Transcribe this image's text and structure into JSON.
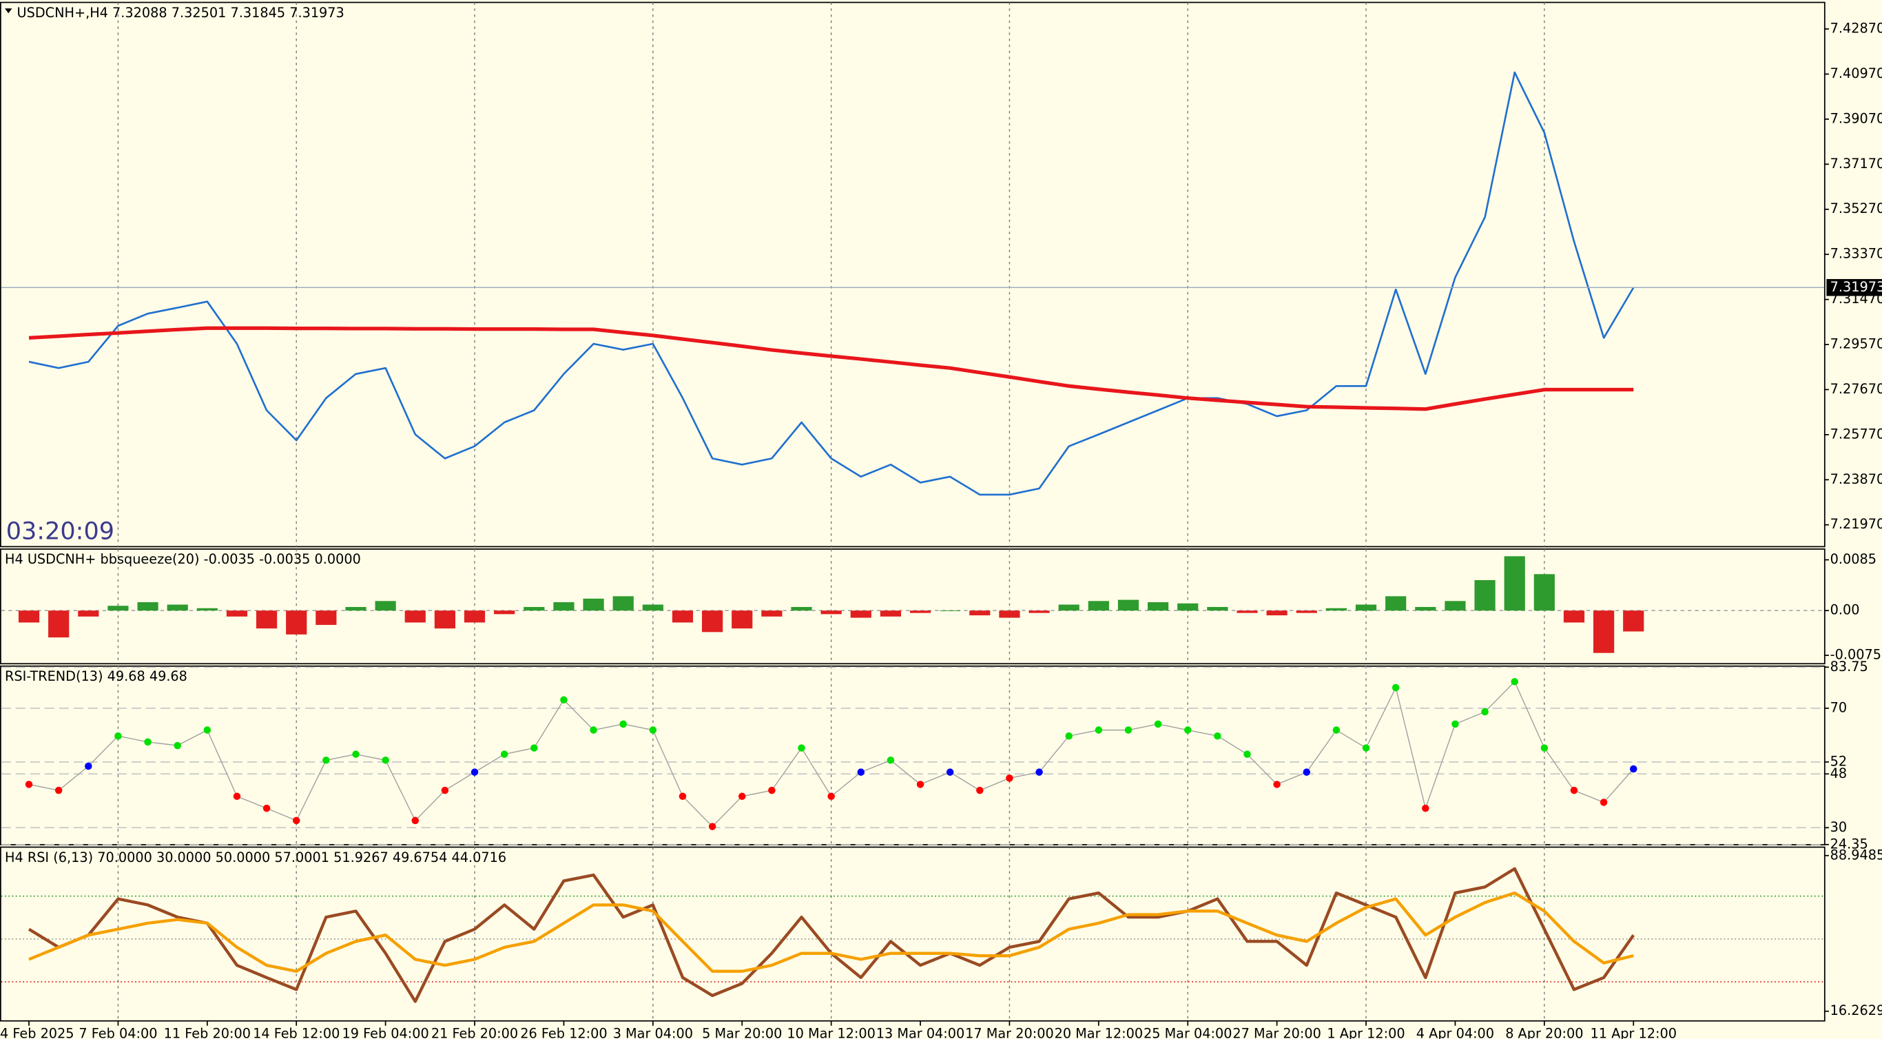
{
  "clock": "03:20:09",
  "chart_data": [
    {
      "type": "line",
      "title": "USDCNH+,H4  7.32088 7.32501 7.31845 7.31973",
      "ylim": [
        7.2105,
        7.4399
      ],
      "yticks": [
        {
          "value": 7.4287,
          "label": "7.42870"
        },
        {
          "value": 7.4097,
          "label": "7.40970"
        },
        {
          "value": 7.3907,
          "label": "7.39070"
        },
        {
          "value": 7.3717,
          "label": "7.37170"
        },
        {
          "value": 7.3527,
          "label": "7.35270"
        },
        {
          "value": 7.3337,
          "label": "7.33370"
        },
        {
          "value": 7.3147,
          "label": "7.31470"
        },
        {
          "value": 7.2957,
          "label": "7.29570"
        },
        {
          "value": 7.2767,
          "label": "7.27670"
        },
        {
          "value": 7.2577,
          "label": "7.25770"
        },
        {
          "value": 7.2387,
          "label": "7.23870"
        },
        {
          "value": 7.2197,
          "label": "7.21970"
        }
      ],
      "current_price": 7.31973,
      "grid": true,
      "series": [
        {
          "color": "#1f6fd0",
          "line_width": 1.5,
          "values": [
            7.2884,
            7.2858,
            7.2884,
            7.3036,
            7.3087,
            7.3112,
            7.3138,
            7.296,
            7.268,
            7.2553,
            7.2731,
            7.2833,
            7.2858,
            7.2578,
            7.2477,
            7.2528,
            7.2629,
            7.268,
            7.2833,
            7.296,
            7.2935,
            7.296,
            7.2731,
            7.2477,
            7.2451,
            7.2477,
            7.2629,
            7.2477,
            7.24,
            7.2451,
            7.2375,
            7.24,
            7.2324,
            7.2324,
            7.235,
            7.2528,
            7.2578,
            7.2629,
            7.268,
            7.2731,
            7.2731,
            7.2706,
            7.2655,
            7.268,
            7.2782,
            7.2782,
            7.3189,
            7.2833,
            7.324,
            7.3494,
            7.4104,
            7.385,
            7.3392,
            7.2985,
            7.3197
          ]
        },
        {
          "color": "#e8161b",
          "line_width": 3,
          "values": [
            7.2985,
            7.2992,
            7.2999,
            7.3006,
            7.3013,
            7.302,
            7.3026,
            7.3026,
            7.3026,
            7.3025,
            7.3025,
            7.3024,
            7.3024,
            7.3023,
            7.3023,
            7.3022,
            7.3022,
            7.3022,
            7.3021,
            7.3021,
            7.3008,
            7.2995,
            7.298,
            7.2965,
            7.295,
            7.2934,
            7.2921,
            7.2908,
            7.2896,
            7.2883,
            7.287,
            7.2858,
            7.2839,
            7.282,
            7.2801,
            7.2782,
            7.2769,
            7.2756,
            7.2744,
            7.2731,
            7.2722,
            7.2713,
            7.2704,
            7.2695,
            7.2693,
            7.269,
            7.2688,
            7.2685,
            7.2706,
            7.2727,
            7.2747,
            7.2767,
            7.2767,
            7.2767,
            7.2767
          ]
        }
      ]
    },
    {
      "type": "bar",
      "title": "H4 USDCNH+ bbsqueeze(20) -0.0035 -0.0035 0.0000",
      "ylim": [
        -0.0089,
        0.0103
      ],
      "yticks": [
        0.0085,
        {
          "value": 0,
          "label": "0.00"
        },
        -0.0075
      ],
      "up_color": "#2e9b2e",
      "down_color": "#e02020",
      "values": [
        -0.002,
        -0.0045,
        -0.001,
        0.0008,
        0.0014,
        0.001,
        0.0004,
        -0.001,
        -0.003,
        -0.004,
        -0.0024,
        0.0006,
        0.0016,
        -0.002,
        -0.003,
        -0.002,
        -0.0006,
        0.0006,
        0.0014,
        0.002,
        0.0024,
        0.001,
        -0.002,
        -0.0036,
        -0.003,
        -0.001,
        0.0006,
        -0.0006,
        -0.0012,
        -0.001,
        -0.0004,
        0,
        -0.0008,
        -0.0012,
        -0.0004,
        0.001,
        0.0016,
        0.0018,
        0.0014,
        0.0012,
        0.0006,
        -0.0004,
        -0.0008,
        -0.0004,
        0.0004,
        0.001,
        0.0024,
        0.0006,
        0.0016,
        0.0051,
        0.0091,
        0.0061,
        -0.002,
        -0.0071,
        -0.0035
      ]
    },
    {
      "type": "dots",
      "title": "RSI-TREND(13) 49.68 49.68",
      "ylim": [
        24.3,
        84.1
      ],
      "yticks": [
        83.75,
        70,
        52,
        48,
        30,
        24.35
      ],
      "high_color": "#00e000",
      "mid_color": "#0000ff",
      "low_color": "#ff0000",
      "values": [
        44.5,
        42.5,
        50.6,
        60.7,
        58.7,
        57.5,
        62.7,
        40.5,
        36.5,
        32.4,
        52.6,
        54.6,
        52.6,
        32.4,
        42.5,
        48.6,
        54.6,
        56.7,
        72.8,
        62.7,
        64.7,
        62.7,
        40.5,
        30.4,
        40.5,
        42.5,
        56.7,
        40.5,
        48.6,
        52.6,
        44.5,
        48.6,
        42.5,
        46.6,
        48.6,
        60.7,
        62.7,
        62.7,
        64.7,
        62.7,
        60.7,
        54.6,
        44.5,
        48.6,
        62.7,
        56.7,
        76.9,
        36.5,
        64.7,
        68.8,
        78.9,
        56.7,
        42.5,
        38.5,
        49.68
      ]
    },
    {
      "type": "line",
      "title": "H4 RSI  (6,13) 70.0000 30.0000 50.0000 57.0001 51.9267 49.6754 44.0716",
      "ylim": [
        11.75,
        92.89
      ],
      "yticks": [
        88.9485,
        16.2629
      ],
      "levels": [
        {
          "value": 70,
          "color": "#2e9b2e"
        },
        {
          "value": 30,
          "color": "#e02020"
        },
        {
          "value": 50,
          "color": "#999999"
        }
      ],
      "categories": [
        "4 Feb 2025",
        null,
        null,
        "7 Feb 04:00",
        null,
        null,
        "11 Feb 20:00",
        null,
        null,
        "14 Feb 12:00",
        null,
        null,
        "19 Feb 04:00",
        null,
        null,
        "21 Feb 20:00",
        null,
        null,
        "26 Feb 12:00",
        null,
        null,
        "3 Mar 04:00",
        null,
        null,
        "5 Mar 20:00",
        null,
        null,
        "10 Mar 12:00",
        null,
        null,
        "13 Mar 04:00",
        null,
        null,
        "17 Mar 20:00",
        null,
        null,
        "20 Mar 12:00",
        null,
        null,
        "25 Mar 04:00",
        null,
        null,
        "27 Mar 20:00",
        null,
        null,
        "1 Apr 12:00",
        null,
        null,
        "4 Apr 04:00",
        null,
        null,
        "8 Apr 20:00",
        null,
        null,
        "11 Apr 12:00"
      ],
      "series": [
        {
          "color": "#9a4a22",
          "line_width": 2.5,
          "values": [
            54.6,
            46.1,
            51.8,
            68.7,
            65.9,
            60.2,
            57.4,
            37.7,
            32.0,
            26.4,
            60.2,
            63.0,
            43.3,
            20.8,
            48.9,
            54.6,
            65.9,
            54.6,
            77.1,
            79.9,
            60.2,
            65.9,
            32.0,
            23.6,
            29.2,
            43.3,
            60.2,
            43.3,
            32.0,
            48.9,
            37.7,
            43.3,
            37.7,
            46.1,
            48.9,
            68.7,
            71.5,
            60.2,
            60.2,
            63.0,
            68.7,
            48.9,
            48.9,
            37.7,
            71.5,
            65.9,
            60.2,
            32.0,
            71.5,
            74.3,
            82.8,
            54.6,
            26.4,
            32.0,
            51.8
          ]
        },
        {
          "color": "#f5a000",
          "line_width": 2.5,
          "values": [
            40.5,
            46.1,
            51.8,
            54.6,
            57.4,
            59.1,
            57.4,
            46.1,
            37.7,
            34.9,
            43.3,
            48.9,
            51.8,
            40.5,
            37.7,
            40.5,
            46.1,
            48.9,
            57.4,
            65.9,
            65.9,
            63.0,
            48.9,
            34.9,
            34.9,
            37.7,
            43.3,
            43.3,
            40.5,
            43.3,
            43.3,
            43.3,
            42.2,
            42.2,
            46.1,
            54.6,
            57.4,
            61.4,
            61.4,
            63.0,
            63.0,
            57.4,
            51.8,
            48.9,
            57.4,
            64.7,
            68.7,
            51.8,
            60.2,
            67.0,
            71.5,
            63.0,
            48.9,
            38.8,
            42.2
          ]
        }
      ]
    }
  ]
}
